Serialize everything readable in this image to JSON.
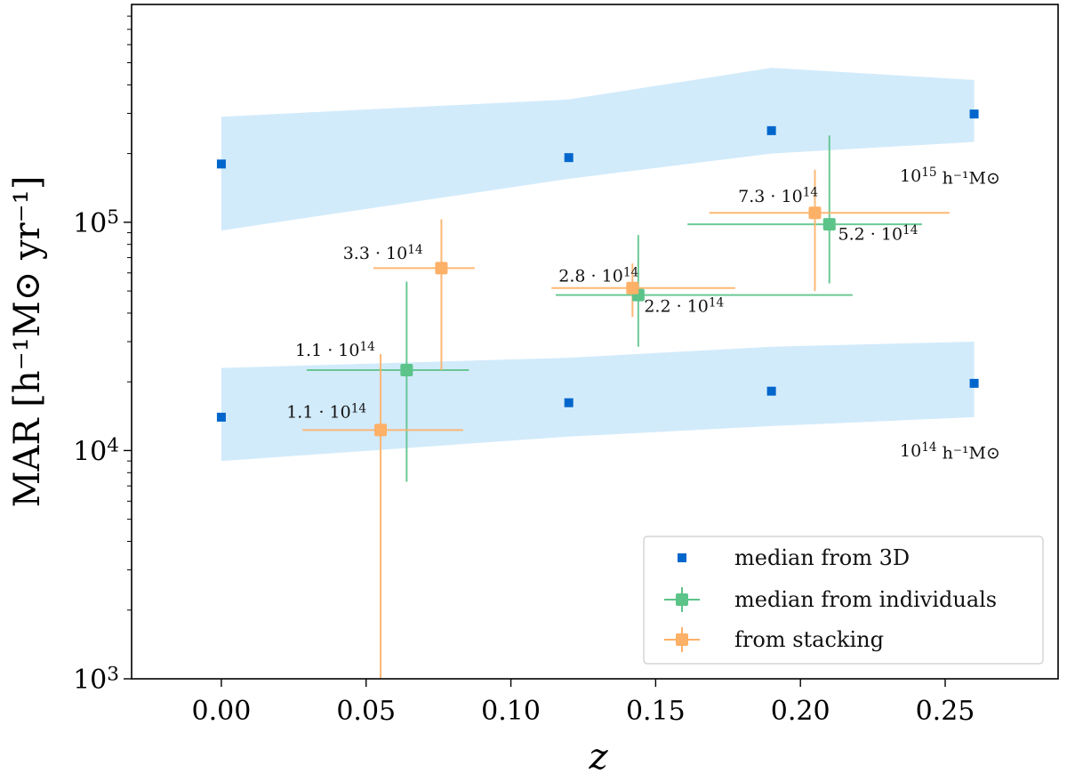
{
  "chart_data": {
    "type": "scatter",
    "xlabel": "z",
    "ylabel": "MAR [h⁻¹M⊙ yr⁻¹]",
    "xlim": [
      -0.031,
      0.289
    ],
    "ylog": true,
    "ylim": [
      1000,
      900000
    ],
    "x_ticks": [
      0.0,
      0.05,
      0.1,
      0.15,
      0.2,
      0.25
    ],
    "x_tick_labels": [
      "0.00",
      "0.05",
      "0.10",
      "0.15",
      "0.20",
      "0.25"
    ],
    "y_ticks": [
      1000,
      10000,
      100000
    ],
    "y_tick_labels": [
      {
        "base": "10",
        "exp": "3"
      },
      {
        "base": "10",
        "exp": "4"
      },
      {
        "base": "10",
        "exp": "5"
      }
    ],
    "bands": [
      {
        "name": "1e15 band",
        "color": "#d2ebfb",
        "x": [
          0.0,
          0.12,
          0.19,
          0.26
        ],
        "lower": [
          92000,
          155000,
          200000,
          225000
        ],
        "upper": [
          290000,
          345000,
          475000,
          420000
        ],
        "label_base": "10",
        "label_exp": "15",
        "label_unit": "h⁻¹M⊙"
      },
      {
        "name": "1e14 band",
        "color": "#d2ebfb",
        "x": [
          0.0,
          0.12,
          0.19,
          0.26
        ],
        "lower": [
          9000,
          11500,
          12800,
          14000
        ],
        "upper": [
          23000,
          25500,
          28500,
          30000
        ],
        "label_base": "10",
        "label_exp": "14",
        "label_unit": "h⁻¹M⊙"
      }
    ],
    "series": [
      {
        "name": "median from 3D",
        "color": "#0066cc",
        "marker": "square",
        "points": [
          {
            "x": 0.0,
            "y": 180000
          },
          {
            "x": 0.12,
            "y": 192000
          },
          {
            "x": 0.19,
            "y": 252000
          },
          {
            "x": 0.26,
            "y": 298000
          },
          {
            "x": 0.0,
            "y": 14000
          },
          {
            "x": 0.12,
            "y": 16200
          },
          {
            "x": 0.19,
            "y": 18200
          },
          {
            "x": 0.26,
            "y": 19700
          }
        ]
      },
      {
        "name": "median from individuals",
        "color": "#5cc389",
        "marker": "square-errorbar",
        "points": [
          {
            "x": 0.064,
            "y": 22500,
            "xerr": [
              0.0345,
              0.0215
            ],
            "yerr": [
              7300,
              55000
            ]
          },
          {
            "x": 0.144,
            "y": 48000,
            "xerr": [
              0.0285,
              0.074
            ],
            "yerr": [
              28500,
              88000
            ]
          },
          {
            "x": 0.21,
            "y": 98000,
            "xerr": [
              0.049,
              0.032
            ],
            "yerr": [
              54000,
              240000
            ]
          }
        ]
      },
      {
        "name": "from stacking",
        "color": "#fdb067",
        "marker": "square-errorbar",
        "points": [
          {
            "x": 0.055,
            "y": 12300,
            "xerr": [
              0.027,
              0.0285
            ],
            "yerr": [
              1000,
              26500
            ]
          },
          {
            "x": 0.076,
            "y": 63000,
            "xerr": [
              0.0235,
              0.0115
            ],
            "yerr": [
              22500,
              103000
            ]
          },
          {
            "x": 0.142,
            "y": 51500,
            "xerr": [
              0.028,
              0.0355
            ],
            "yerr": [
              38500,
              66000
            ]
          },
          {
            "x": 0.205,
            "y": 110000,
            "xerr": [
              0.0365,
              0.0465
            ],
            "yerr": [
              50000,
              170000
            ]
          }
        ]
      }
    ],
    "annotations": [
      {
        "coef": "1.1 · 10",
        "exp": "14",
        "x": 0.0255,
        "y": 26000,
        "anchor": "start"
      },
      {
        "coef": "1.1 · 10",
        "exp": "14",
        "x": 0.0225,
        "y": 13900,
        "anchor": "start"
      },
      {
        "coef": "3.3 · 10",
        "exp": "14",
        "x": 0.042,
        "y": 69000,
        "anchor": "start"
      },
      {
        "coef": "2.8 · 10",
        "exp": "14",
        "x": 0.1165,
        "y": 55000,
        "anchor": "start"
      },
      {
        "coef": "2.2 · 10",
        "exp": "14",
        "x": 0.146,
        "y": 40500,
        "anchor": "start"
      },
      {
        "coef": "7.3 · 10",
        "exp": "14",
        "x": 0.1785,
        "y": 123000,
        "anchor": "start"
      },
      {
        "coef": "5.2 · 10",
        "exp": "14",
        "x": 0.213,
        "y": 84000,
        "anchor": "start"
      }
    ],
    "legend": {
      "position": "lower-right",
      "entries": [
        "median from 3D",
        "median from individuals",
        "from stacking"
      ]
    }
  }
}
